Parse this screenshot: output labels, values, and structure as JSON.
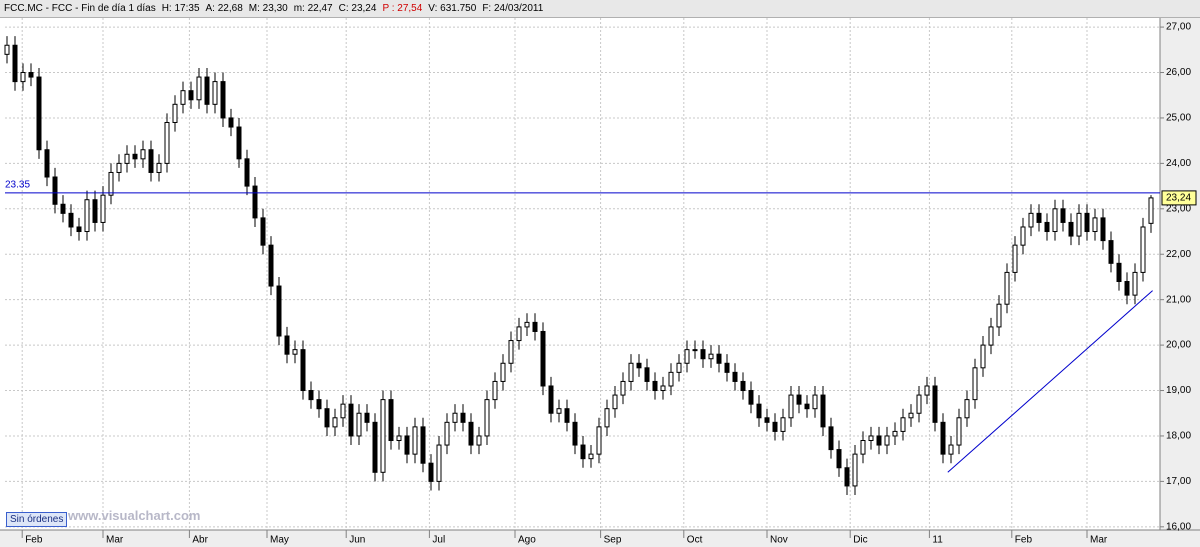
{
  "header": {
    "items": [
      "FCC.MC - FCC - Fin de día 1 días",
      "H: 17:35",
      "A: 22,68",
      "M: 23,30",
      "m: 22,47",
      "C: 23,24",
      "P : 27,54",
      "V: 631.750",
      "F: 24/03/2011"
    ]
  },
  "footer": {
    "button": "Sin órdenes",
    "watermark": "www.visualchart.com"
  },
  "chart_data": {
    "type": "candlestick",
    "xlim": [
      -0.25,
      144.125
    ],
    "xticks": [
      {
        "value": 1.9,
        "label": "Feb"
      },
      {
        "value": 12,
        "label": "Mar"
      },
      {
        "value": 22.8,
        "label": "Abr"
      },
      {
        "value": 32.5,
        "label": "May"
      },
      {
        "value": 42.4,
        "label": "Jun"
      },
      {
        "value": 52.8,
        "label": "Jul"
      },
      {
        "value": 63.5,
        "label": "Ago"
      },
      {
        "value": 74.2,
        "label": "Sep"
      },
      {
        "value": 84.6,
        "label": "Oct"
      },
      {
        "value": 95,
        "label": "Nov"
      },
      {
        "value": 105.4,
        "label": "Dic"
      },
      {
        "value": 115.3,
        "label": "11"
      },
      {
        "value": 125.6,
        "label": "Feb"
      },
      {
        "value": 135,
        "label": "Mar"
      }
    ],
    "ylim": [
      15.93,
      27.2
    ],
    "yticks": [
      {
        "value": 16,
        "label": "16,00"
      },
      {
        "value": 17,
        "label": "17,00"
      },
      {
        "value": 18,
        "label": "18,00"
      },
      {
        "value": 19,
        "label": "19,00"
      },
      {
        "value": 20,
        "label": "20,00"
      },
      {
        "value": 21,
        "label": "21,00"
      },
      {
        "value": 22,
        "label": "22,00"
      },
      {
        "value": 23,
        "label": "23,00"
      },
      {
        "value": 24,
        "label": "24,00"
      },
      {
        "value": 25,
        "label": "25,00"
      },
      {
        "value": 26,
        "label": "26,00"
      },
      {
        "value": 27,
        "label": "27,00"
      }
    ],
    "grid": true,
    "color": "#000000",
    "open": [
      26.4,
      26.6,
      25.8,
      26.0,
      25.9,
      24.3,
      23.7,
      23.1,
      22.9,
      22.6,
      22.5,
      23.2,
      22.7,
      23.3,
      23.8,
      24.0,
      24.2,
      24.1,
      24.3,
      23.8,
      24.0,
      24.9,
      25.3,
      25.6,
      25.4,
      25.9,
      25.3,
      25.8,
      25.0,
      24.8,
      24.1,
      23.5,
      22.8,
      22.2,
      21.3,
      20.2,
      19.8,
      19.9,
      19.0,
      18.8,
      18.6,
      18.2,
      18.4,
      18.7,
      18.0,
      18.5,
      18.3,
      17.2,
      18.8,
      17.9,
      18.0,
      17.6,
      18.2,
      17.4,
      17.0,
      17.8,
      18.3,
      18.5,
      18.3,
      17.8,
      18.0,
      18.8,
      19.2,
      19.6,
      20.1,
      20.4,
      20.5,
      20.3,
      19.1,
      18.5,
      18.6,
      18.3,
      17.8,
      17.5,
      17.6,
      18.2,
      18.6,
      18.9,
      19.2,
      19.6,
      19.5,
      19.2,
      19.0,
      19.1,
      19.4,
      19.6,
      19.9,
      19.9,
      19.7,
      19.8,
      19.6,
      19.4,
      19.2,
      19.0,
      18.7,
      18.4,
      18.3,
      18.1,
      18.4,
      18.9,
      18.7,
      18.6,
      18.9,
      18.2,
      17.7,
      17.3,
      16.9,
      17.6,
      17.9,
      18.0,
      17.8,
      18.0,
      18.1,
      18.4,
      18.5,
      18.9,
      19.1,
      18.3,
      17.6,
      17.8,
      18.4,
      18.8,
      19.5,
      20.0,
      20.4,
      20.9,
      21.6,
      22.2,
      22.6,
      22.9,
      22.7,
      22.5,
      23.0,
      22.7,
      22.4,
      22.9,
      22.5,
      22.8,
      22.3,
      21.8,
      21.4,
      21.1,
      21.6,
      22.68
    ],
    "high": [
      26.8,
      26.8,
      26.2,
      26.2,
      26.1,
      24.5,
      23.9,
      23.3,
      23.1,
      22.8,
      23.4,
      23.4,
      23.5,
      24.0,
      24.2,
      24.4,
      24.4,
      24.5,
      24.5,
      24.2,
      25.1,
      25.5,
      25.8,
      25.8,
      26.1,
      26.1,
      26.0,
      26.0,
      25.2,
      25.0,
      24.3,
      23.7,
      23.0,
      22.4,
      21.5,
      20.4,
      20.1,
      20.1,
      19.2,
      19.0,
      18.8,
      18.6,
      18.9,
      18.9,
      18.7,
      18.7,
      18.5,
      19.0,
      19.0,
      18.2,
      18.2,
      18.4,
      18.4,
      17.6,
      18.0,
      18.5,
      18.7,
      18.7,
      18.5,
      18.2,
      19.0,
      19.4,
      19.8,
      20.3,
      20.6,
      20.7,
      20.7,
      20.5,
      19.3,
      18.8,
      18.8,
      18.5,
      18.0,
      17.8,
      18.4,
      18.8,
      19.1,
      19.4,
      19.8,
      19.8,
      19.7,
      19.4,
      19.3,
      19.6,
      19.8,
      20.1,
      20.1,
      20.1,
      20.0,
      20.0,
      19.8,
      19.6,
      19.4,
      19.2,
      18.9,
      18.6,
      18.5,
      18.6,
      19.1,
      19.1,
      18.9,
      19.1,
      19.1,
      18.4,
      17.9,
      17.5,
      17.8,
      18.1,
      18.2,
      18.2,
      18.2,
      18.3,
      18.6,
      18.7,
      19.1,
      19.3,
      19.3,
      18.5,
      18.0,
      18.6,
      19.0,
      19.7,
      20.2,
      20.6,
      21.1,
      21.8,
      22.4,
      22.8,
      23.1,
      23.1,
      22.9,
      23.2,
      23.2,
      22.9,
      23.1,
      23.1,
      23.0,
      23.0,
      22.5,
      22.0,
      21.6,
      21.8,
      22.8,
      23.3
    ],
    "low": [
      26.2,
      25.6,
      25.6,
      25.7,
      24.1,
      23.5,
      22.9,
      22.7,
      22.4,
      22.3,
      22.3,
      22.5,
      22.5,
      23.1,
      23.6,
      23.8,
      23.9,
      23.9,
      23.6,
      23.6,
      23.8,
      24.7,
      25.1,
      25.2,
      25.2,
      25.1,
      25.1,
      24.8,
      24.6,
      23.9,
      23.3,
      22.6,
      22.0,
      21.1,
      20.0,
      19.6,
      19.6,
      18.8,
      18.6,
      18.4,
      18.0,
      18.0,
      18.2,
      17.8,
      17.8,
      18.1,
      17.0,
      17.0,
      17.7,
      17.7,
      17.4,
      17.4,
      17.2,
      16.8,
      16.8,
      17.6,
      18.1,
      18.1,
      17.6,
      17.6,
      17.8,
      18.6,
      19.0,
      19.4,
      19.9,
      20.2,
      20.1,
      18.9,
      18.3,
      18.3,
      18.1,
      17.6,
      17.3,
      17.3,
      17.4,
      18.0,
      18.4,
      18.7,
      19.0,
      19.3,
      19.0,
      18.8,
      18.8,
      18.9,
      19.2,
      19.4,
      19.7,
      19.5,
      19.5,
      19.4,
      19.2,
      19.0,
      18.8,
      18.5,
      18.2,
      18.1,
      17.9,
      17.9,
      18.2,
      18.5,
      18.4,
      18.4,
      18.0,
      17.5,
      17.1,
      16.7,
      16.7,
      17.4,
      17.7,
      17.6,
      17.6,
      17.8,
      17.9,
      18.2,
      18.3,
      18.7,
      18.1,
      17.4,
      17.4,
      17.6,
      18.2,
      18.6,
      19.3,
      19.8,
      20.2,
      20.7,
      21.4,
      22.0,
      22.4,
      22.5,
      22.3,
      22.3,
      22.5,
      22.2,
      22.2,
      22.3,
      22.3,
      22.1,
      21.6,
      21.2,
      20.9,
      20.9,
      21.4,
      22.47
    ],
    "close": [
      26.6,
      25.8,
      26.0,
      25.9,
      24.3,
      23.7,
      23.1,
      22.9,
      22.6,
      22.5,
      23.2,
      22.7,
      23.3,
      23.8,
      24.0,
      24.2,
      24.1,
      24.3,
      23.8,
      24.0,
      24.9,
      25.3,
      25.6,
      25.4,
      25.9,
      25.3,
      25.8,
      25.0,
      24.8,
      24.1,
      23.5,
      22.8,
      22.2,
      21.3,
      20.2,
      19.8,
      19.9,
      19.0,
      18.8,
      18.6,
      18.2,
      18.4,
      18.7,
      18.0,
      18.5,
      18.3,
      17.2,
      18.8,
      17.9,
      18.0,
      17.6,
      18.2,
      17.4,
      17.0,
      17.8,
      18.3,
      18.5,
      18.3,
      17.8,
      18.0,
      18.8,
      19.2,
      19.6,
      20.1,
      20.4,
      20.5,
      20.3,
      19.1,
      18.5,
      18.6,
      18.3,
      17.8,
      17.5,
      17.6,
      18.2,
      18.6,
      18.9,
      19.2,
      19.6,
      19.5,
      19.2,
      19.0,
      19.1,
      19.4,
      19.6,
      19.9,
      19.9,
      19.7,
      19.8,
      19.6,
      19.4,
      19.2,
      19.0,
      18.7,
      18.4,
      18.3,
      18.1,
      18.4,
      18.9,
      18.7,
      18.6,
      18.9,
      18.2,
      17.7,
      17.3,
      16.9,
      17.6,
      17.9,
      18.0,
      17.8,
      18.0,
      18.1,
      18.4,
      18.5,
      18.9,
      19.1,
      18.3,
      17.6,
      17.8,
      18.4,
      18.8,
      19.5,
      20.0,
      20.4,
      20.9,
      21.6,
      22.2,
      22.6,
      22.9,
      22.7,
      22.5,
      23.0,
      22.7,
      22.4,
      22.9,
      22.5,
      22.8,
      22.3,
      21.8,
      21.4,
      21.1,
      21.6,
      22.6,
      23.24
    ],
    "hline": 23.35,
    "hline_color": "#0000cc",
    "trendline": {
      "x": [
        117.6,
        143.2
      ],
      "y": [
        17.2,
        21.2
      ],
      "color": "#0000cc"
    },
    "last_price": {
      "value": 23.24,
      "label": "23,24"
    }
  }
}
